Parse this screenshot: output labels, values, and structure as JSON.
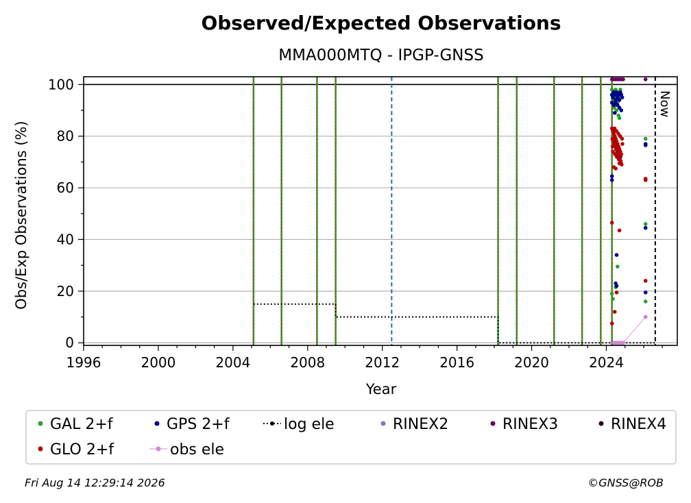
{
  "chart_data": {
    "type": "scatter",
    "title": "Observed/Expected Observations",
    "subtitle": "MMA000MTQ - IPGP-GNSS",
    "xlabel": "Year",
    "ylabel": "Obs/Exp Observations (%)",
    "xlim": [
      1996,
      2027.8
    ],
    "ylim": [
      -1,
      103
    ],
    "x_ticks": [
      1996,
      2000,
      2004,
      2008,
      2012,
      2016,
      2020,
      2024
    ],
    "y_ticks": [
      0,
      20,
      40,
      60,
      80,
      100
    ],
    "grid": "horizontal",
    "reference_line_y": 100,
    "now_year": 2026.62,
    "now_label": "Now",
    "equipment_change_years": [
      2005.1,
      2006.6,
      2008.5,
      2009.5,
      2018.2,
      2019.2,
      2021.2,
      2022.7,
      2023.7,
      2024.3
    ],
    "blue_dashed_years": [
      2012.5
    ],
    "colors": {
      "gal": "#2ca02c",
      "gps": "#00008b",
      "glo": "#b40000",
      "rinex2": "#7b7bbf",
      "rinex3": "#6b0062",
      "rinex4": "#200020",
      "obs_ele": "#d08ad0",
      "log_ele": "#000000",
      "equipment_green": "#2ca02c",
      "equipment_red": "#d62728",
      "blue_dashed": "#1f6fbf"
    },
    "log_ele": [
      {
        "x": 2005.1,
        "y": 15
      },
      {
        "x": 2009.5,
        "y": 15
      },
      {
        "x": 2009.5,
        "y": 10
      },
      {
        "x": 2018.2,
        "y": 10
      },
      {
        "x": 2018.2,
        "y": 0
      },
      {
        "x": 2026.62,
        "y": 0
      }
    ],
    "series": [
      {
        "name": "GAL 2+f",
        "key": "gal",
        "points": [
          [
            2024.3,
            98
          ],
          [
            2024.4,
            97
          ],
          [
            2024.45,
            96
          ],
          [
            2024.5,
            98
          ],
          [
            2024.55,
            97
          ],
          [
            2024.6,
            96
          ],
          [
            2024.65,
            95
          ],
          [
            2024.7,
            97
          ],
          [
            2024.75,
            98
          ],
          [
            2024.8,
            96
          ],
          [
            2024.35,
            94
          ],
          [
            2024.45,
            92
          ],
          [
            2024.55,
            90
          ],
          [
            2024.65,
            88
          ],
          [
            2024.7,
            87
          ],
          [
            2024.6,
            93
          ],
          [
            2024.5,
            95
          ],
          [
            2024.42,
            91
          ],
          [
            2024.3,
            19
          ],
          [
            2024.35,
            17
          ],
          [
            2024.6,
            29.5
          ],
          [
            2024.5,
            21.5
          ],
          [
            2026.1,
            79
          ],
          [
            2026.1,
            46
          ],
          [
            2026.1,
            16
          ]
        ]
      },
      {
        "name": "GPS 2+f",
        "key": "gps",
        "points": [
          [
            2024.3,
            96
          ],
          [
            2024.35,
            95
          ],
          [
            2024.4,
            97
          ],
          [
            2024.45,
            96
          ],
          [
            2024.5,
            94
          ],
          [
            2024.55,
            97
          ],
          [
            2024.6,
            95
          ],
          [
            2024.65,
            96
          ],
          [
            2024.7,
            94
          ],
          [
            2024.75,
            97
          ],
          [
            2024.8,
            96
          ],
          [
            2024.85,
            95
          ],
          [
            2024.3,
            93
          ],
          [
            2024.4,
            92
          ],
          [
            2024.5,
            93
          ],
          [
            2024.6,
            92
          ],
          [
            2024.7,
            91
          ],
          [
            2024.8,
            90
          ],
          [
            2024.45,
            89
          ],
          [
            2024.75,
            72
          ],
          [
            2024.3,
            64.5
          ],
          [
            2024.3,
            63
          ],
          [
            2024.55,
            34
          ],
          [
            2024.5,
            23
          ],
          [
            2024.55,
            22
          ],
          [
            2026.1,
            77
          ],
          [
            2026.1,
            76.5
          ],
          [
            2026.1,
            44.5
          ],
          [
            2026.1,
            19.5
          ]
        ]
      },
      {
        "name": "RINEX2",
        "key": "rinex2",
        "points": []
      },
      {
        "name": "RINEX3",
        "key": "rinex3",
        "points": [
          [
            2024.3,
            102
          ],
          [
            2024.4,
            102
          ],
          [
            2024.5,
            102
          ],
          [
            2024.6,
            102
          ],
          [
            2024.7,
            102
          ],
          [
            2024.8,
            102
          ],
          [
            2024.9,
            102
          ],
          [
            2026.1,
            102
          ]
        ]
      },
      {
        "name": "RINEX4",
        "key": "rinex4",
        "points": []
      },
      {
        "name": "GLO 2+f",
        "key": "glo",
        "points": [
          [
            2024.3,
            83
          ],
          [
            2024.35,
            82
          ],
          [
            2024.4,
            81
          ],
          [
            2024.45,
            80
          ],
          [
            2024.5,
            79
          ],
          [
            2024.55,
            78
          ],
          [
            2024.6,
            77
          ],
          [
            2024.65,
            76
          ],
          [
            2024.7,
            75
          ],
          [
            2024.75,
            74
          ],
          [
            2024.8,
            73
          ],
          [
            2024.32,
            79
          ],
          [
            2024.38,
            78
          ],
          [
            2024.42,
            77
          ],
          [
            2024.48,
            76
          ],
          [
            2024.52,
            75
          ],
          [
            2024.58,
            74
          ],
          [
            2024.62,
            73
          ],
          [
            2024.68,
            72
          ],
          [
            2024.72,
            71
          ],
          [
            2024.78,
            70
          ],
          [
            2024.82,
            69
          ],
          [
            2024.34,
            76
          ],
          [
            2024.44,
            83
          ],
          [
            2024.54,
            82
          ],
          [
            2024.64,
            81
          ],
          [
            2024.74,
            80
          ],
          [
            2024.84,
            79
          ],
          [
            2024.36,
            74
          ],
          [
            2024.46,
            73
          ],
          [
            2024.56,
            72
          ],
          [
            2024.66,
            71
          ],
          [
            2024.76,
            70.5
          ],
          [
            2024.86,
            77
          ],
          [
            2024.4,
            68
          ],
          [
            2024.5,
            67.5
          ],
          [
            2024.7,
            69.5
          ],
          [
            2024.3,
            46.5
          ],
          [
            2024.7,
            43.5
          ],
          [
            2024.55,
            19.5
          ],
          [
            2024.45,
            12
          ],
          [
            2024.3,
            7.5
          ],
          [
            2026.1,
            63.5
          ],
          [
            2026.1,
            63
          ],
          [
            2026.1,
            24
          ]
        ]
      },
      {
        "name": "obs ele",
        "key": "obs_ele",
        "points": [
          [
            2024.4,
            0
          ],
          [
            2024.5,
            0
          ],
          [
            2024.6,
            0
          ],
          [
            2024.7,
            0
          ],
          [
            2024.8,
            0
          ],
          [
            2024.9,
            0
          ],
          [
            2026.1,
            10
          ]
        ]
      }
    ],
    "legend": [
      {
        "label": "GAL 2+f",
        "key": "gal",
        "kind": "dot"
      },
      {
        "label": "GPS 2+f",
        "key": "gps",
        "kind": "dot"
      },
      {
        "label": "log ele",
        "key": "log_ele",
        "kind": "dotted"
      },
      {
        "label": "RINEX2",
        "key": "rinex2",
        "kind": "dot"
      },
      {
        "label": "RINEX3",
        "key": "rinex3",
        "kind": "dot"
      },
      {
        "label": "RINEX4",
        "key": "rinex4",
        "kind": "dot"
      },
      {
        "label": "GLO 2+f",
        "key": "glo",
        "kind": "dot"
      },
      {
        "label": "obs ele",
        "key": "obs_ele",
        "kind": "line-dot"
      }
    ],
    "legend_placement": "bottom"
  },
  "footer": {
    "timestamp": "Fri Aug 14 12:29:14 2026",
    "credit": "©GNSS@ROB"
  }
}
